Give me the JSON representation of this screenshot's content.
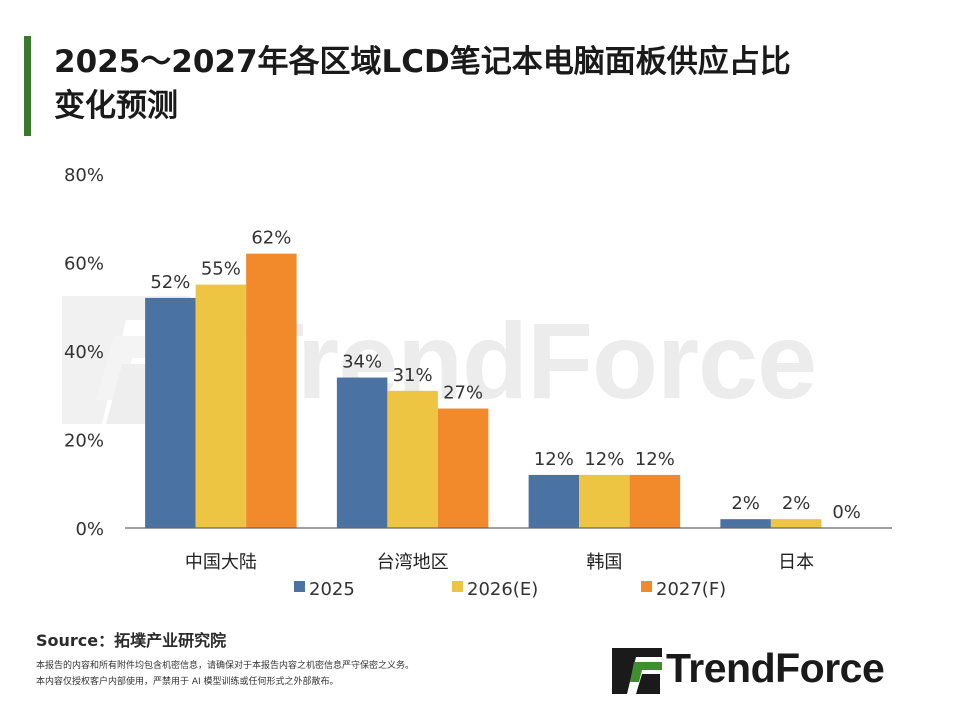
{
  "header": {
    "title_line1": "2025～2027年各区域LCD笔记本电脑面板供应占比",
    "title_line2": "变化预测"
  },
  "colors": {
    "accent": "#3a7a2c",
    "series_2025": "#4a73a3",
    "series_2026": "#eec443",
    "series_2027": "#f28a2c"
  },
  "chart_data": {
    "type": "bar",
    "title": "2025～2027年各区域LCD笔记本电脑面板供应占比变化预测",
    "categories": [
      "中国大陆",
      "台湾地区",
      "韩国",
      "日本"
    ],
    "series": [
      {
        "name": "2025",
        "values": [
          52,
          34,
          12,
          2
        ],
        "labels": [
          "52%",
          "34%",
          "12%",
          "2%"
        ]
      },
      {
        "name": "2026(E)",
        "values": [
          55,
          31,
          12,
          2
        ],
        "labels": [
          "55%",
          "31%",
          "12%",
          "2%"
        ]
      },
      {
        "name": "2027(F)",
        "values": [
          62,
          27,
          12,
          0
        ],
        "labels": [
          "62%",
          "27%",
          "12%",
          "0%"
        ]
      }
    ],
    "ylim": [
      0,
      80
    ],
    "yticks": [
      "0%",
      "20%",
      "40%",
      "60%",
      "80%"
    ],
    "ytick_values": [
      0,
      20,
      40,
      60,
      80
    ],
    "xlabel": "",
    "ylabel": "",
    "grid": false,
    "legend_position": "bottom-center"
  },
  "footer": {
    "source": "Source：拓墣产业研究院",
    "note_line1": "本报告的内容和所有附件均包含机密信息，请确保对于本报告内容之机密信息严守保密之义务。",
    "note_line2": "本内容仅授权客户内部使用，严禁用于 AI 模型训练或任何形式之外部散布。"
  },
  "brand": {
    "name": "TrendForce",
    "watermark": "TrendForce"
  }
}
